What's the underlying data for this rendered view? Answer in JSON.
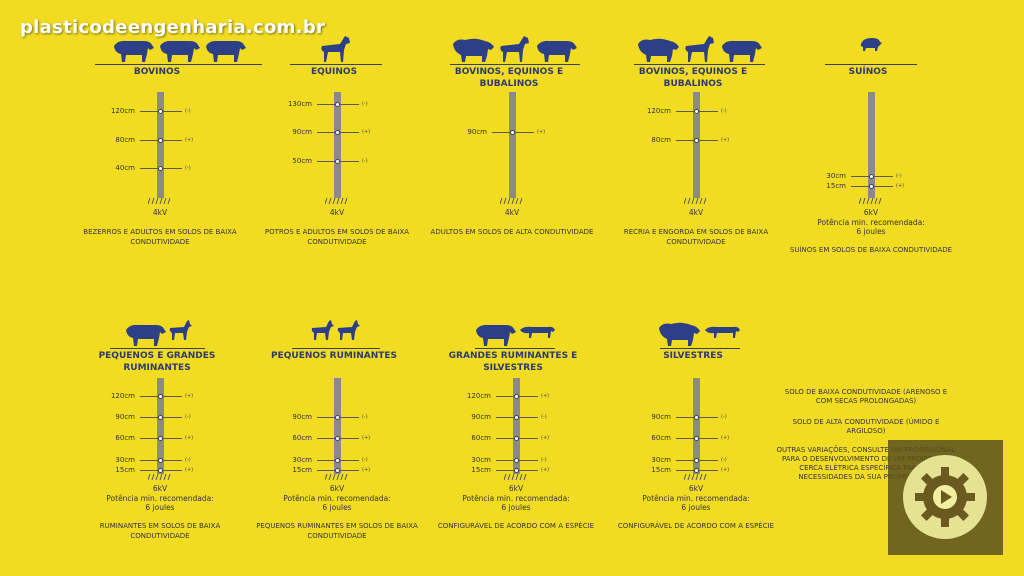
{
  "watermark": "plasticodeengenharia.com.br",
  "panels": [
    {
      "title": "BOVINOS",
      "voltage": "4kV",
      "power": "",
      "desc": "BEZERROS E ADULTOS EM SOLOS DE BAIXA CONDUTIVIDADE",
      "wires": [
        {
          "h": "120cm",
          "s": "(-)"
        },
        {
          "h": "80cm",
          "s": "(+)"
        },
        {
          "h": "40cm",
          "s": "(-)"
        }
      ]
    },
    {
      "title": "EQUINOS",
      "voltage": "4kV",
      "power": "",
      "desc": "POTROS E ADULTOS EM SOLOS DE BAIXA CONDUTIVIDADE",
      "wires": [
        {
          "h": "130cm",
          "s": "(-)"
        },
        {
          "h": "90cm",
          "s": "(+)"
        },
        {
          "h": "50cm",
          "s": "(-)"
        }
      ]
    },
    {
      "title": "BOVINOS, EQUINOS E BUBALINOS",
      "voltage": "4kV",
      "power": "",
      "desc": "ADULTOS EM SOLOS DE ALTA CONDUTIVIDADE",
      "wires": [
        {
          "h": "90cm",
          "s": "(+)"
        }
      ]
    },
    {
      "title": "BOVINOS, EQUINOS E BUBALINOS",
      "voltage": "4kV",
      "power": "",
      "desc": "RECRIA E ENGORDA EM SOLOS DE BAIXA CONDUTIVIDADE",
      "wires": [
        {
          "h": "120cm",
          "s": "(-)"
        },
        {
          "h": "80cm",
          "s": "(+)"
        }
      ]
    },
    {
      "title": "SUÍNOS",
      "voltage": "6kV",
      "power": "Potência min. recomendada: 6 joules",
      "desc": "SUÍNOS EM SOLOS DE BAIXA CONDUTIVIDADE",
      "wires": [
        {
          "h": "30cm",
          "s": "(-)"
        },
        {
          "h": "15cm",
          "s": "(+)"
        }
      ]
    },
    {
      "title": "PEQUENOS E GRANDES RUMINANTES",
      "voltage": "6kV",
      "power": "Potência min. recomendada: 6 joules",
      "desc": "RUMINANTES EM SOLOS DE BAIXA CONDUTIVIDADE",
      "wires": [
        {
          "h": "120cm",
          "s": "(+)"
        },
        {
          "h": "90cm",
          "s": "(-)"
        },
        {
          "h": "60cm",
          "s": "(+)"
        },
        {
          "h": "30cm",
          "s": "(-)"
        },
        {
          "h": "15cm",
          "s": "(+)"
        }
      ]
    },
    {
      "title": "PEQUENOS RUMINANTES",
      "voltage": "6kV",
      "power": "Potência min. recomendada: 6 joules",
      "desc": "PEQUENOS RUMINANTES EM SOLOS DE BAIXA CONDUTIVIDADE",
      "wires": [
        {
          "h": "90cm",
          "s": "(-)"
        },
        {
          "h": "60cm",
          "s": "(+)"
        },
        {
          "h": "30cm",
          "s": "(-)"
        },
        {
          "h": "15cm",
          "s": "(+)"
        }
      ]
    },
    {
      "title": "GRANDES RUMINANTES E SILVESTRES",
      "voltage": "6kV",
      "power": "Potência min. recomendada: 6 joules",
      "desc": "CONFIGURÁVEL DE ACORDO COM A ESPÉCIE",
      "wires": [
        {
          "h": "120cm",
          "s": "(+)"
        },
        {
          "h": "90cm",
          "s": "(-)"
        },
        {
          "h": "60cm",
          "s": "(+)"
        },
        {
          "h": "30cm",
          "s": "(-)"
        },
        {
          "h": "15cm",
          "s": "(+)"
        }
      ]
    },
    {
      "title": "SILVESTRES",
      "voltage": "6kV",
      "power": "Potência min. recomendada: 6 joules",
      "desc": "CONFIGURÁVEL DE ACORDO COM A ESPÉCIE",
      "wires": [
        {
          "h": "90cm",
          "s": "(-)"
        },
        {
          "h": "60cm",
          "s": "(+)"
        },
        {
          "h": "30cm",
          "s": "(-)"
        },
        {
          "h": "15cm",
          "s": "(+)"
        }
      ]
    }
  ],
  "legend": {
    "low": "SOLO DE BAIXA CONDUTIVIDADE (ARENOSO E COM SECAS PROLONGADAS)",
    "high": "SOLO DE ALTA CONDUTIVIDADE (ÚMIDO E ARGILOSO)",
    "other": "OUTRAS VARIAÇÕES, CONSULTE UM PROFISSIONAL PARA O DESENVOLVIMENTO DE UM PROJETO DE CERCA ELÉTRICA ESPECÍFICA PARA AS NECESSIDADES DA SUA PROPRIEDADE"
  },
  "colors": {
    "background": "#f2dc22",
    "animal": "#2d3f86",
    "post": "#8a8a8a",
    "text": "#333333"
  },
  "icons": [
    "bull-icon",
    "horse-icon",
    "buffalo-icon",
    "pig-icon",
    "goat-icon",
    "jaguar-icon",
    "settings-gear-icon"
  ]
}
